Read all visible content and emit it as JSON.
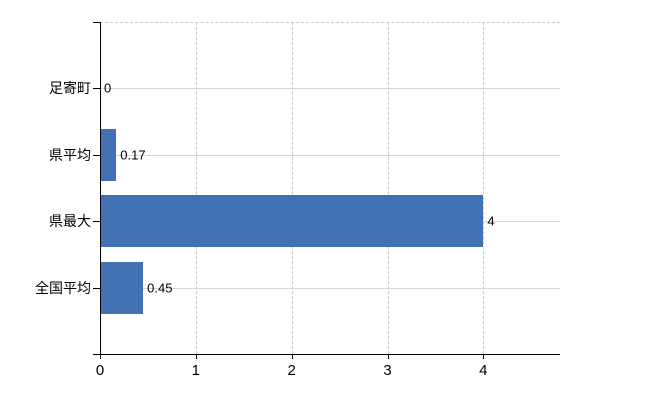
{
  "chart_data": {
    "type": "bar",
    "orientation": "horizontal",
    "categories": [
      "足寄町",
      "県平均",
      "県最大",
      "全国平均"
    ],
    "values": [
      0,
      0.17,
      4,
      0.45
    ],
    "value_labels": [
      "0",
      "0.17",
      "4",
      "0.45"
    ],
    "x_ticks": [
      0,
      1,
      2,
      3,
      4
    ],
    "x_tick_labels": [
      "0",
      "1",
      "2",
      "3",
      "4"
    ],
    "xlim": [
      0,
      4.8
    ],
    "title": "",
    "xlabel": "",
    "ylabel": "",
    "grid": true,
    "legend": false,
    "bar_color": "#4272B4"
  },
  "colors": {
    "background": "#ffffff",
    "bar": "#4272B4",
    "grid_solid": "#d6d6d6",
    "grid_dashed": "#c9c9c9",
    "axis": "#000000",
    "text": "#000000"
  }
}
